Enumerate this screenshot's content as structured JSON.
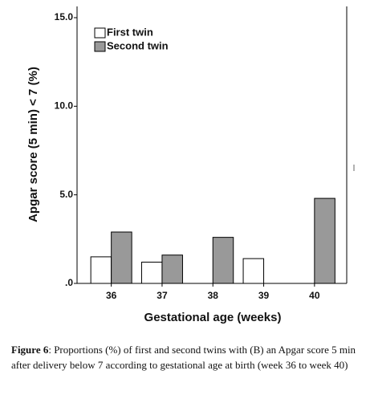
{
  "chart_data": {
    "type": "bar",
    "xlabel": "Gestational age (weeks)",
    "ylabel": "Apgar score (5 min) < 7 (%)",
    "categories": [
      "36",
      "37",
      "38",
      "39",
      "40"
    ],
    "series": [
      {
        "name": "First twin",
        "color": "#ffffff",
        "values": [
          1.5,
          1.2,
          0,
          1.4,
          0
        ]
      },
      {
        "name": "Second twin",
        "color": "#999999",
        "values": [
          2.9,
          1.6,
          2.6,
          0,
          4.8
        ]
      }
    ],
    "ylim": [
      0,
      15
    ],
    "yticks": [
      {
        "value": 0,
        "label": ".0"
      },
      {
        "value": 5,
        "label": "5.0"
      },
      {
        "value": 10,
        "label": "10.0"
      },
      {
        "value": 15,
        "label": "15.0"
      }
    ],
    "legend": "upper left",
    "grid": false
  },
  "caption": {
    "label": "Figure 6",
    "text": ": Proportions (%) of first and second twins with (B) an Apgar score 5 min after delivery below 7 according to gestational age at birth (week 36 to week 40)"
  }
}
